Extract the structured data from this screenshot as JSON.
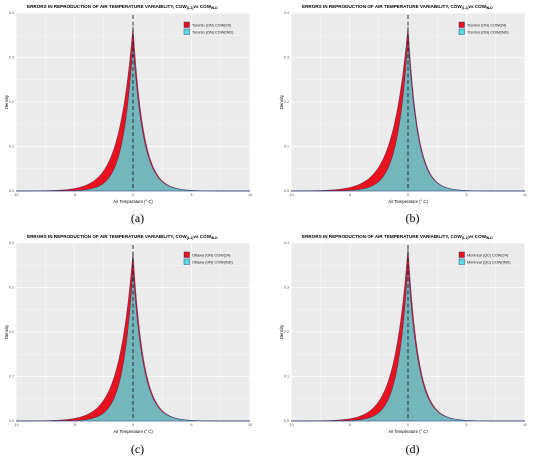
{
  "colors": {
    "red": "#e8121e",
    "cyan": "#59dce0",
    "panel_bg": "#ebebeb",
    "grid": "#ffffff"
  },
  "chart_data": [
    {
      "type": "area",
      "title_main": "ERRORS IN REPRODUCTION OF AIR TEMPERATURE VARIABILITY, COW",
      "title_sub1": "(1-1)",
      "title_mid": "vs COW",
      "title_sub2": "IN-D",
      "xlabel": "Air Temperature (° C)",
      "ylabel": "Density",
      "xlim": [
        -10,
        10
      ],
      "ylim": [
        0,
        0.4
      ],
      "xticks": [
        "-10",
        "-5",
        "0",
        "5",
        "10"
      ],
      "yticks": [
        "0.0",
        "0.1",
        "0.2",
        "0.3",
        "0.4"
      ],
      "grid": true,
      "legend_position": "top-right",
      "vline_x": 0,
      "series": [
        {
          "name": "Toronto (ON) COW(24)",
          "peak": 0.37,
          "left_width": 1.2,
          "right_width": 0.9
        },
        {
          "name": "Toronto (ON) COW(IND)",
          "peak": 0.33,
          "left_width": 0.85,
          "right_width": 0.9
        }
      ],
      "caption": "(a)"
    },
    {
      "type": "area",
      "title_main": "ERRORS IN REPRODUCTION OF AIR TEMPERATURE VARIABILITY, COW",
      "title_sub1": "(1-1)",
      "title_mid": "vs COW",
      "title_sub2": "IN-D",
      "xlabel": "Air Temperature (° C)",
      "ylabel": "Density",
      "xlim": [
        -10,
        10
      ],
      "ylim": [
        0,
        0.4
      ],
      "xticks": [
        "-10",
        "-5",
        "0",
        "5",
        "10"
      ],
      "yticks": [
        "0.0",
        "0.1",
        "0.2",
        "0.3",
        "0.4"
      ],
      "grid": true,
      "legend_position": "top-right",
      "vline_x": 0,
      "series": [
        {
          "name": "Trenton (ON) COW(24)",
          "peak": 0.37,
          "left_width": 1.3,
          "right_width": 0.85
        },
        {
          "name": "Trenton (ON) COW(IND)",
          "peak": 0.34,
          "left_width": 0.9,
          "right_width": 0.85
        }
      ],
      "caption": "(b)"
    },
    {
      "type": "area",
      "title_main": "ERRORS IN REPRODUCTION OF AIR TEMPERATURE VARIABILITY, COW",
      "title_sub1": "(1-1)",
      "title_mid": "vs COW",
      "title_sub2": "IN-D",
      "xlabel": "Air Temperature (° C)",
      "ylabel": "Density",
      "xlim": [
        -10,
        10
      ],
      "ylim": [
        0,
        0.4
      ],
      "xticks": [
        "-10",
        "-5",
        "0",
        "5",
        "10"
      ],
      "yticks": [
        "0.0",
        "0.1",
        "0.2",
        "0.3",
        "0.4"
      ],
      "grid": true,
      "legend_position": "top-right",
      "vline_x": 0,
      "series": [
        {
          "name": "Ottawa (ON) COW(24)",
          "peak": 0.38,
          "left_width": 1.2,
          "right_width": 0.9
        },
        {
          "name": "Ottawa (ON) COW(IND)",
          "peak": 0.34,
          "left_width": 0.85,
          "right_width": 0.9
        }
      ],
      "caption": "(c)"
    },
    {
      "type": "area",
      "title_main": "ERRORS IN REPRODUCTION OF AIR TEMPERATURE VARIABILITY, COW",
      "title_sub1": "(1-1)",
      "title_mid": "vs COW",
      "title_sub2": "IN-D",
      "xlabel": "Air Temperature (° C)",
      "ylabel": "Density",
      "xlim": [
        -10,
        10
      ],
      "ylim": [
        0,
        0.4
      ],
      "xticks": [
        "-10",
        "-5",
        "0",
        "5",
        "10"
      ],
      "yticks": [
        "0.0",
        "0.1",
        "0.2",
        "0.3",
        "0.4"
      ],
      "grid": true,
      "legend_position": "top-right",
      "vline_x": 0,
      "series": [
        {
          "name": "Montreal (QC) COW(24)",
          "peak": 0.39,
          "left_width": 1.15,
          "right_width": 0.9
        },
        {
          "name": "Montreal (QC) COW(IND)",
          "peak": 0.35,
          "left_width": 0.85,
          "right_width": 0.9
        }
      ],
      "caption": "(d)"
    }
  ]
}
